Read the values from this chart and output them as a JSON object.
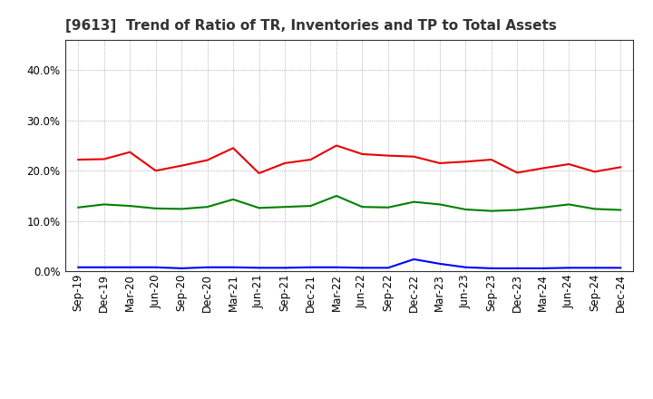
{
  "title": "[9613]  Trend of Ratio of TR, Inventories and TP to Total Assets",
  "x_labels": [
    "Sep-19",
    "Dec-19",
    "Mar-20",
    "Jun-20",
    "Sep-20",
    "Dec-20",
    "Mar-21",
    "Jun-21",
    "Sep-21",
    "Dec-21",
    "Mar-22",
    "Jun-22",
    "Sep-22",
    "Dec-22",
    "Mar-23",
    "Jun-23",
    "Sep-23",
    "Dec-23",
    "Mar-24",
    "Jun-24",
    "Sep-24",
    "Dec-24"
  ],
  "trade_receivables": [
    0.222,
    0.223,
    0.237,
    0.2,
    0.21,
    0.221,
    0.245,
    0.195,
    0.215,
    0.222,
    0.25,
    0.233,
    0.23,
    0.228,
    0.215,
    0.218,
    0.222,
    0.196,
    0.205,
    0.213,
    0.198,
    0.207
  ],
  "inventories": [
    0.008,
    0.008,
    0.008,
    0.008,
    0.006,
    0.008,
    0.008,
    0.007,
    0.007,
    0.008,
    0.008,
    0.007,
    0.007,
    0.024,
    0.015,
    0.008,
    0.006,
    0.006,
    0.006,
    0.007,
    0.007,
    0.007
  ],
  "trade_payables": [
    0.127,
    0.133,
    0.13,
    0.125,
    0.124,
    0.128,
    0.143,
    0.126,
    0.128,
    0.13,
    0.15,
    0.128,
    0.127,
    0.138,
    0.133,
    0.123,
    0.12,
    0.122,
    0.127,
    0.133,
    0.124,
    0.122
  ],
  "tr_color": "#e80000",
  "inv_color": "#0000ff",
  "tp_color": "#008000",
  "ylim": [
    0.0,
    0.46
  ],
  "yticks": [
    0.0,
    0.1,
    0.2,
    0.3,
    0.4
  ],
  "background_color": "#ffffff",
  "grid_color": "#999999",
  "title_fontsize": 11,
  "tick_fontsize": 8.5,
  "legend_fontsize": 9
}
